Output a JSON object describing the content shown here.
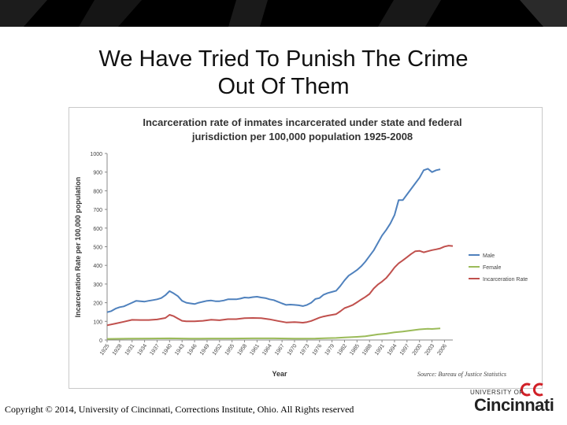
{
  "slide": {
    "title_line1": "We Have Tried To Punish The Crime",
    "title_line2": "Out Of Them",
    "copyright": "Copyright © 2014, University of Cincinnati, Corrections Institute, Ohio. All Rights reserved",
    "logo_top": "UNIVERSITY OF",
    "logo_name": "Cincinnati"
  },
  "chart_data": {
    "type": "line",
    "title_line1": "Incarceration rate of inmates incarcerated under state and federal",
    "title_line2": "jurisdiction per 100,000 population 1925-2008",
    "xlabel": "Year",
    "ylabel": "Incarceration Rate per 100,000 population",
    "source": "Source: Bureau of Justice Statistics",
    "ylim": [
      0,
      1000
    ],
    "yticks": [
      0,
      100,
      200,
      300,
      400,
      500,
      600,
      700,
      800,
      900,
      1000
    ],
    "xlim": [
      1925,
      2008
    ],
    "xticks": [
      1925,
      1928,
      1931,
      1934,
      1937,
      1940,
      1943,
      1946,
      1949,
      1952,
      1955,
      1958,
      1961,
      1964,
      1967,
      1970,
      1973,
      1976,
      1979,
      1982,
      1985,
      1988,
      1991,
      1994,
      1997,
      2000,
      2003,
      2006
    ],
    "grid": false,
    "legend_position": "right",
    "series": [
      {
        "name": "Male",
        "color": "#4f81bd",
        "points": [
          [
            1925,
            149
          ],
          [
            1926,
            155
          ],
          [
            1927,
            168
          ],
          [
            1928,
            176
          ],
          [
            1929,
            180
          ],
          [
            1930,
            190
          ],
          [
            1931,
            200
          ],
          [
            1932,
            210
          ],
          [
            1933,
            208
          ],
          [
            1934,
            206
          ],
          [
            1935,
            210
          ],
          [
            1936,
            214
          ],
          [
            1937,
            218
          ],
          [
            1938,
            225
          ],
          [
            1939,
            240
          ],
          [
            1940,
            262
          ],
          [
            1941,
            250
          ],
          [
            1942,
            235
          ],
          [
            1943,
            210
          ],
          [
            1944,
            200
          ],
          [
            1945,
            196
          ],
          [
            1946,
            193
          ],
          [
            1947,
            200
          ],
          [
            1948,
            205
          ],
          [
            1949,
            210
          ],
          [
            1950,
            212
          ],
          [
            1951,
            208
          ],
          [
            1952,
            208
          ],
          [
            1953,
            212
          ],
          [
            1954,
            218
          ],
          [
            1955,
            218
          ],
          [
            1956,
            218
          ],
          [
            1957,
            222
          ],
          [
            1958,
            228
          ],
          [
            1959,
            226
          ],
          [
            1960,
            230
          ],
          [
            1961,
            232
          ],
          [
            1962,
            228
          ],
          [
            1963,
            225
          ],
          [
            1964,
            218
          ],
          [
            1965,
            214
          ],
          [
            1966,
            205
          ],
          [
            1967,
            196
          ],
          [
            1968,
            188
          ],
          [
            1969,
            190
          ],
          [
            1970,
            188
          ],
          [
            1971,
            186
          ],
          [
            1972,
            182
          ],
          [
            1973,
            188
          ],
          [
            1974,
            200
          ],
          [
            1975,
            220
          ],
          [
            1976,
            225
          ],
          [
            1977,
            243
          ],
          [
            1978,
            252
          ],
          [
            1979,
            258
          ],
          [
            1980,
            264
          ],
          [
            1981,
            290
          ],
          [
            1982,
            320
          ],
          [
            1983,
            345
          ],
          [
            1984,
            360
          ],
          [
            1985,
            375
          ],
          [
            1986,
            395
          ],
          [
            1987,
            420
          ],
          [
            1988,
            450
          ],
          [
            1989,
            480
          ],
          [
            1990,
            520
          ],
          [
            1991,
            560
          ],
          [
            1992,
            590
          ],
          [
            1993,
            625
          ],
          [
            1994,
            670
          ],
          [
            1995,
            750
          ],
          [
            1996,
            750
          ],
          [
            1997,
            780
          ],
          [
            1998,
            810
          ],
          [
            1999,
            840
          ],
          [
            2000,
            870
          ],
          [
            2001,
            910
          ],
          [
            2002,
            918
          ],
          [
            2003,
            900
          ],
          [
            2004,
            910
          ],
          [
            2005,
            915
          ]
        ]
      },
      {
        "name": "Female",
        "color": "#9bbb59",
        "points": [
          [
            1925,
            6
          ],
          [
            1930,
            7
          ],
          [
            1935,
            8
          ],
          [
            1940,
            9
          ],
          [
            1945,
            7
          ],
          [
            1950,
            8
          ],
          [
            1955,
            8
          ],
          [
            1960,
            9
          ],
          [
            1965,
            9
          ],
          [
            1970,
            7
          ],
          [
            1975,
            8
          ],
          [
            1978,
            10
          ],
          [
            1980,
            11
          ],
          [
            1982,
            14
          ],
          [
            1985,
            17
          ],
          [
            1987,
            20
          ],
          [
            1990,
            30
          ],
          [
            1992,
            34
          ],
          [
            1994,
            41
          ],
          [
            1996,
            45
          ],
          [
            1998,
            51
          ],
          [
            2000,
            57
          ],
          [
            2002,
            60
          ],
          [
            2003,
            59
          ],
          [
            2005,
            62
          ]
        ]
      },
      {
        "name": "Incarceration Rate",
        "color": "#c0504d",
        "points": [
          [
            1925,
            79
          ],
          [
            1927,
            88
          ],
          [
            1929,
            98
          ],
          [
            1931,
            108
          ],
          [
            1933,
            107
          ],
          [
            1935,
            107
          ],
          [
            1937,
            110
          ],
          [
            1939,
            118
          ],
          [
            1940,
            135
          ],
          [
            1941,
            128
          ],
          [
            1942,
            115
          ],
          [
            1943,
            103
          ],
          [
            1944,
            100
          ],
          [
            1946,
            100
          ],
          [
            1948,
            103
          ],
          [
            1950,
            109
          ],
          [
            1952,
            106
          ],
          [
            1954,
            112
          ],
          [
            1956,
            112
          ],
          [
            1958,
            117
          ],
          [
            1960,
            118
          ],
          [
            1962,
            117
          ],
          [
            1964,
            111
          ],
          [
            1966,
            102
          ],
          [
            1968,
            94
          ],
          [
            1970,
            96
          ],
          [
            1972,
            93
          ],
          [
            1973,
            96
          ],
          [
            1974,
            102
          ],
          [
            1975,
            111
          ],
          [
            1976,
            120
          ],
          [
            1977,
            126
          ],
          [
            1978,
            131
          ],
          [
            1980,
            139
          ],
          [
            1981,
            154
          ],
          [
            1982,
            171
          ],
          [
            1983,
            179
          ],
          [
            1984,
            188
          ],
          [
            1985,
            202
          ],
          [
            1986,
            217
          ],
          [
            1987,
            231
          ],
          [
            1988,
            247
          ],
          [
            1989,
            276
          ],
          [
            1990,
            297
          ],
          [
            1991,
            313
          ],
          [
            1992,
            332
          ],
          [
            1993,
            359
          ],
          [
            1994,
            389
          ],
          [
            1995,
            411
          ],
          [
            1996,
            427
          ],
          [
            1997,
            444
          ],
          [
            1998,
            461
          ],
          [
            1999,
            476
          ],
          [
            2000,
            478
          ],
          [
            2001,
            470
          ],
          [
            2002,
            476
          ],
          [
            2003,
            482
          ],
          [
            2004,
            486
          ],
          [
            2005,
            491
          ],
          [
            2006,
            501
          ],
          [
            2007,
            506
          ],
          [
            2008,
            504
          ]
        ]
      }
    ]
  }
}
